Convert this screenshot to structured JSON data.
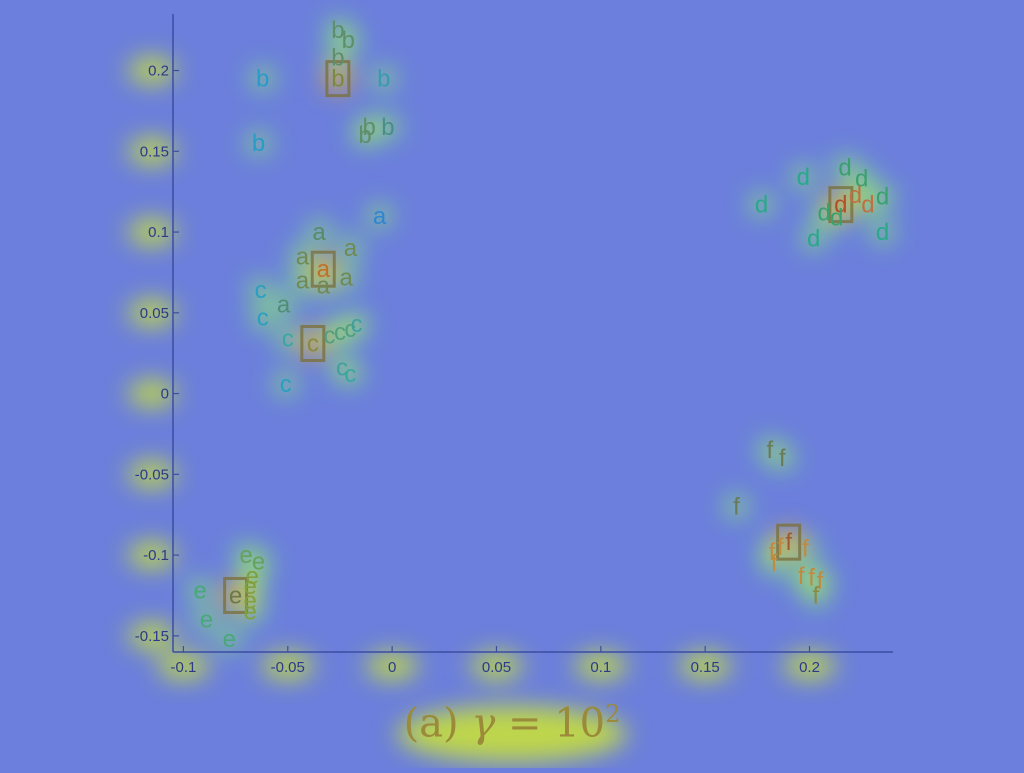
{
  "caption": {
    "prefix": "(a) ",
    "symbol": "γ",
    "equals": " = ",
    "base": "10",
    "exponent": "2"
  },
  "colors": {
    "background": "#6c7fdc",
    "axis": "#3b4da3",
    "tick_label": "#2d3a8a",
    "caption": "#9a8a3a"
  },
  "chart_data": {
    "type": "scatter",
    "xlim": [
      -0.105,
      0.24
    ],
    "ylim": [
      -0.16,
      0.235
    ],
    "xticks": [
      -0.1,
      -0.05,
      0,
      0.05,
      0.1,
      0.15,
      0.2
    ],
    "yticks": [
      -0.15,
      -0.1,
      -0.05,
      0,
      0.05,
      0.1,
      0.15,
      0.2
    ],
    "xtick_labels": [
      "-0.1",
      "-0.05",
      "0",
      "0.05",
      "0.1",
      "0.15",
      "0.2"
    ],
    "ytick_labels": [
      "-0.15",
      "-0.1",
      "-0.05",
      "0",
      "0.05",
      "0.1",
      "0.15",
      "0.2"
    ],
    "grid": false,
    "overlay": "attention heatmap",
    "points": [
      {
        "label": "a",
        "x": -0.033,
        "y": 0.077,
        "color": "#c0702a",
        "highlight": true
      },
      {
        "label": "a",
        "x": -0.035,
        "y": 0.1,
        "color": "#5a8a6a"
      },
      {
        "label": "a",
        "x": -0.043,
        "y": 0.085,
        "color": "#6f8a55"
      },
      {
        "label": "a",
        "x": -0.02,
        "y": 0.09,
        "color": "#6f8a55"
      },
      {
        "label": "a",
        "x": -0.043,
        "y": 0.07,
        "color": "#6f8a55"
      },
      {
        "label": "a",
        "x": -0.033,
        "y": 0.067,
        "color": "#6f8a55"
      },
      {
        "label": "a",
        "x": -0.022,
        "y": 0.072,
        "color": "#6f8a55"
      },
      {
        "label": "a",
        "x": -0.052,
        "y": 0.055,
        "color": "#4f8f75"
      },
      {
        "label": "a",
        "x": -0.006,
        "y": 0.11,
        "color": "#2e86d0"
      },
      {
        "label": "b",
        "x": -0.026,
        "y": 0.195,
        "color": "#7a8a40",
        "highlight": true
      },
      {
        "label": "b",
        "x": -0.026,
        "y": 0.225,
        "color": "#5f8f6a"
      },
      {
        "label": "b",
        "x": -0.021,
        "y": 0.219,
        "color": "#5f8f6a"
      },
      {
        "label": "b",
        "x": -0.026,
        "y": 0.208,
        "color": "#5f8f6a"
      },
      {
        "label": "b",
        "x": -0.062,
        "y": 0.195,
        "color": "#2a9ac8"
      },
      {
        "label": "b",
        "x": -0.004,
        "y": 0.195,
        "color": "#3a9ab0"
      },
      {
        "label": "b",
        "x": -0.064,
        "y": 0.155,
        "color": "#2a9ac8"
      },
      {
        "label": "b",
        "x": -0.011,
        "y": 0.165,
        "color": "#5f8f6a"
      },
      {
        "label": "b",
        "x": -0.013,
        "y": 0.16,
        "color": "#5f8f6a"
      },
      {
        "label": "b",
        "x": -0.002,
        "y": 0.165,
        "color": "#4a8f85"
      },
      {
        "label": "c",
        "x": -0.038,
        "y": 0.031,
        "color": "#8a8a40",
        "highlight": true
      },
      {
        "label": "c",
        "x": -0.063,
        "y": 0.064,
        "color": "#28a0c0"
      },
      {
        "label": "c",
        "x": -0.062,
        "y": 0.047,
        "color": "#28a0c0"
      },
      {
        "label": "c",
        "x": -0.05,
        "y": 0.034,
        "color": "#38a8a0"
      },
      {
        "label": "c",
        "x": -0.03,
        "y": 0.036,
        "color": "#50a080"
      },
      {
        "label": "c",
        "x": -0.025,
        "y": 0.038,
        "color": "#50a080"
      },
      {
        "label": "c",
        "x": -0.02,
        "y": 0.04,
        "color": "#50a080"
      },
      {
        "label": "c",
        "x": -0.017,
        "y": 0.043,
        "color": "#40a0a0"
      },
      {
        "label": "c",
        "x": -0.024,
        "y": 0.016,
        "color": "#40a0a0"
      },
      {
        "label": "c",
        "x": -0.02,
        "y": 0.012,
        "color": "#38a8a0"
      },
      {
        "label": "c",
        "x": -0.051,
        "y": 0.006,
        "color": "#28a0c0"
      },
      {
        "label": "d",
        "x": 0.215,
        "y": 0.117,
        "color": "#b0502a",
        "highlight": true
      },
      {
        "label": "d",
        "x": 0.177,
        "y": 0.117,
        "color": "#2aa88a"
      },
      {
        "label": "d",
        "x": 0.197,
        "y": 0.134,
        "color": "#2aa88a"
      },
      {
        "label": "d",
        "x": 0.217,
        "y": 0.14,
        "color": "#3aa070"
      },
      {
        "label": "d",
        "x": 0.225,
        "y": 0.133,
        "color": "#3aa070"
      },
      {
        "label": "d",
        "x": 0.222,
        "y": 0.123,
        "color": "#c07040"
      },
      {
        "label": "d",
        "x": 0.228,
        "y": 0.117,
        "color": "#c07040"
      },
      {
        "label": "d",
        "x": 0.235,
        "y": 0.122,
        "color": "#3aa070"
      },
      {
        "label": "d",
        "x": 0.207,
        "y": 0.112,
        "color": "#3aa070"
      },
      {
        "label": "d",
        "x": 0.213,
        "y": 0.109,
        "color": "#3aa070"
      },
      {
        "label": "d",
        "x": 0.202,
        "y": 0.096,
        "color": "#2aa88a"
      },
      {
        "label": "d",
        "x": 0.235,
        "y": 0.1,
        "color": "#2aa88a"
      },
      {
        "label": "e",
        "x": -0.075,
        "y": -0.125,
        "color": "#6a7a4a",
        "highlight": true
      },
      {
        "label": "e",
        "x": -0.092,
        "y": -0.122,
        "color": "#48a878"
      },
      {
        "label": "e",
        "x": -0.07,
        "y": -0.1,
        "color": "#68a060"
      },
      {
        "label": "e",
        "x": -0.064,
        "y": -0.104,
        "color": "#68a060"
      },
      {
        "label": "e",
        "x": -0.067,
        "y": -0.113,
        "color": "#80a040"
      },
      {
        "label": "e",
        "x": -0.068,
        "y": -0.119,
        "color": "#80a040"
      },
      {
        "label": "e",
        "x": -0.068,
        "y": -0.128,
        "color": "#80a040"
      },
      {
        "label": "e",
        "x": -0.068,
        "y": -0.135,
        "color": "#80a040"
      },
      {
        "label": "e",
        "x": -0.089,
        "y": -0.14,
        "color": "#48a878"
      },
      {
        "label": "e",
        "x": -0.078,
        "y": -0.152,
        "color": "#48a878"
      },
      {
        "label": "f",
        "x": 0.19,
        "y": -0.092,
        "color": "#a05a30",
        "highlight": true
      },
      {
        "label": "f",
        "x": 0.181,
        "y": -0.035,
        "color": "#6a7a55"
      },
      {
        "label": "f",
        "x": 0.187,
        "y": -0.04,
        "color": "#6a7a55"
      },
      {
        "label": "f",
        "x": 0.165,
        "y": -0.07,
        "color": "#6a7a55"
      },
      {
        "label": "f",
        "x": 0.182,
        "y": -0.098,
        "color": "#c08a40"
      },
      {
        "label": "f",
        "x": 0.186,
        "y": -0.095,
        "color": "#c08a40"
      },
      {
        "label": "f",
        "x": 0.198,
        "y": -0.096,
        "color": "#c08a40"
      },
      {
        "label": "f",
        "x": 0.183,
        "y": -0.105,
        "color": "#c08a40"
      },
      {
        "label": "f",
        "x": 0.196,
        "y": -0.113,
        "color": "#c08a40"
      },
      {
        "label": "f",
        "x": 0.201,
        "y": -0.114,
        "color": "#c08a40"
      },
      {
        "label": "f",
        "x": 0.205,
        "y": -0.116,
        "color": "#c08a40"
      },
      {
        "label": "f",
        "x": 0.203,
        "y": -0.125,
        "color": "#8a8a40"
      }
    ]
  }
}
